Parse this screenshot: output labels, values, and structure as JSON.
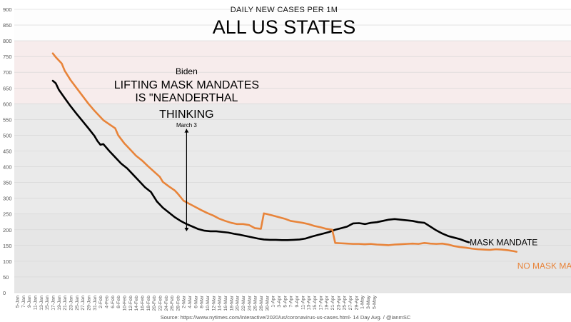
{
  "chart_data": {
    "type": "line",
    "subtitle": "DAILY NEW CASES PER 1M",
    "title": "ALL US STATES",
    "source": "Source: https://www.nytimes.com/interactive/2020/us/coronavirus-us-cases.html- 14 Day Avg. / @ianmSC",
    "ylim": [
      0,
      900
    ],
    "y_ticks": [
      0,
      50,
      100,
      150,
      200,
      250,
      300,
      350,
      400,
      450,
      500,
      550,
      600,
      650,
      700,
      750,
      800,
      850,
      900
    ],
    "x_ticks": [
      "5-Jan",
      "7-Jan",
      "9-Jan",
      "11-Jan",
      "13-Jan",
      "15-Jan",
      "17-Jan",
      "19-Jan",
      "21-Jan",
      "23-Jan",
      "25-Jan",
      "27-Jan",
      "29-Jan",
      "31-Jan",
      "2-Feb",
      "4-Feb",
      "6-Feb",
      "8-Feb",
      "10-Feb",
      "12-Feb",
      "14-Feb",
      "16-Feb",
      "18-Feb",
      "20-Feb",
      "22-Feb",
      "24-Feb",
      "26-Feb",
      "28-Feb",
      "2-Mar",
      "4-Mar",
      "6-Mar",
      "8-Mar",
      "10-Mar",
      "12-Mar",
      "14-Mar",
      "16-Mar",
      "18-Mar",
      "20-Mar",
      "22-Mar",
      "24-Mar",
      "26-Mar",
      "28-Mar",
      "30-Mar",
      "1-Apr",
      "3-Apr",
      "5-Apr",
      "7-Apr",
      "9-Apr",
      "11-Apr",
      "13-Apr",
      "15-Apr",
      "17-Apr",
      "19-Apr",
      "21-Apr",
      "23-Apr",
      "25-Apr",
      "27-Apr",
      "29-Apr",
      "1-May",
      "3-May",
      "5-May"
    ],
    "x_axis_start": "5-Jan",
    "bands": [
      {
        "from": 0,
        "to": 250,
        "color": "#e6e6e6"
      },
      {
        "from": 250,
        "to": 600,
        "color": "#eaeaea"
      },
      {
        "from": 600,
        "to": 800,
        "color": "#f7ecec"
      },
      {
        "from": 800,
        "to": 900,
        "color": "#fdfdfd"
      }
    ],
    "series": [
      {
        "name": "MASK MANDATE",
        "color": "#000000",
        "points": [
          [
            "17-Jan",
            673
          ],
          [
            "18-Jan",
            665
          ],
          [
            "19-Jan",
            645
          ],
          [
            "21-Jan",
            618
          ],
          [
            "23-Jan",
            592
          ],
          [
            "25-Jan",
            568
          ],
          [
            "27-Jan",
            545
          ],
          [
            "29-Jan",
            522
          ],
          [
            "31-Jan",
            498
          ],
          [
            "1-Feb",
            482
          ],
          [
            "2-Feb",
            470
          ],
          [
            "3-Feb",
            472
          ],
          [
            "5-Feb",
            450
          ],
          [
            "7-Feb",
            430
          ],
          [
            "9-Feb",
            410
          ],
          [
            "11-Feb",
            395
          ],
          [
            "13-Feb",
            375
          ],
          [
            "15-Feb",
            355
          ],
          [
            "17-Feb",
            335
          ],
          [
            "19-Feb",
            320
          ],
          [
            "21-Feb",
            290
          ],
          [
            "23-Feb",
            270
          ],
          [
            "25-Feb",
            255
          ],
          [
            "27-Feb",
            240
          ],
          [
            "1-Mar",
            228
          ],
          [
            "3-Mar",
            218
          ],
          [
            "5-Mar",
            210
          ],
          [
            "7-Mar",
            202
          ],
          [
            "9-Mar",
            197
          ],
          [
            "11-Mar",
            195
          ],
          [
            "13-Mar",
            195
          ],
          [
            "15-Mar",
            193
          ],
          [
            "17-Mar",
            191
          ],
          [
            "19-Mar",
            187
          ],
          [
            "21-Mar",
            184
          ],
          [
            "23-Mar",
            180
          ],
          [
            "25-Mar",
            176
          ],
          [
            "27-Mar",
            172
          ],
          [
            "29-Mar",
            169
          ],
          [
            "31-Mar",
            168
          ],
          [
            "2-Apr",
            168
          ],
          [
            "4-Apr",
            167
          ],
          [
            "6-Apr",
            167
          ],
          [
            "8-Apr",
            168
          ],
          [
            "10-Apr",
            169
          ],
          [
            "12-Apr",
            172
          ],
          [
            "14-Apr",
            178
          ],
          [
            "16-Apr",
            183
          ],
          [
            "18-Apr",
            188
          ],
          [
            "20-Apr",
            193
          ],
          [
            "22-Apr",
            200
          ],
          [
            "24-Apr",
            205
          ],
          [
            "26-Apr",
            210
          ],
          [
            "28-Apr",
            220
          ],
          [
            "30-Apr",
            221
          ],
          [
            "2-May",
            218
          ],
          [
            "4-May",
            222
          ],
          [
            "6-May",
            224
          ],
          [
            "8-May",
            228
          ],
          [
            "10-May",
            232
          ],
          [
            "12-May",
            234
          ],
          [
            "14-May",
            232
          ],
          [
            "16-May",
            230
          ],
          [
            "18-May",
            228
          ],
          [
            "20-May",
            224
          ],
          [
            "22-May",
            222
          ],
          [
            "24-May",
            210
          ],
          [
            "26-May",
            198
          ],
          [
            "28-May",
            188
          ],
          [
            "30-May",
            180
          ],
          [
            "1-Jun",
            175
          ],
          [
            "3-Jun",
            170
          ],
          [
            "5-Jun",
            163
          ],
          [
            "6-Jun",
            160
          ]
        ]
      },
      {
        "name": "NO MASK MANDATE",
        "color": "#e8843a",
        "points": [
          [
            "17-Jan",
            760
          ],
          [
            "18-Jan",
            748
          ],
          [
            "19-Jan",
            738
          ],
          [
            "20-Jan",
            728
          ],
          [
            "21-Jan",
            705
          ],
          [
            "23-Jan",
            675
          ],
          [
            "25-Jan",
            650
          ],
          [
            "27-Jan",
            625
          ],
          [
            "29-Jan",
            600
          ],
          [
            "31-Jan",
            578
          ],
          [
            "2-Feb",
            558
          ],
          [
            "3-Feb",
            548
          ],
          [
            "5-Feb",
            535
          ],
          [
            "7-Feb",
            522
          ],
          [
            "8-Feb",
            500
          ],
          [
            "10-Feb",
            475
          ],
          [
            "12-Feb",
            455
          ],
          [
            "14-Feb",
            435
          ],
          [
            "16-Feb",
            420
          ],
          [
            "18-Feb",
            402
          ],
          [
            "20-Feb",
            385
          ],
          [
            "22-Feb",
            368
          ],
          [
            "23-Feb",
            352
          ],
          [
            "25-Feb",
            338
          ],
          [
            "27-Feb",
            325
          ],
          [
            "28-Feb",
            315
          ],
          [
            "2-Mar",
            292
          ],
          [
            "4-Mar",
            282
          ],
          [
            "6-Mar",
            272
          ],
          [
            "8-Mar",
            262
          ],
          [
            "10-Mar",
            253
          ],
          [
            "12-Mar",
            245
          ],
          [
            "14-Mar",
            235
          ],
          [
            "16-Mar",
            228
          ],
          [
            "18-Mar",
            222
          ],
          [
            "20-Mar",
            218
          ],
          [
            "22-Mar",
            218
          ],
          [
            "24-Mar",
            215
          ],
          [
            "26-Mar",
            205
          ],
          [
            "28-Mar",
            203
          ],
          [
            "29-Mar",
            252
          ],
          [
            "30-Mar",
            250
          ],
          [
            "1-Apr",
            245
          ],
          [
            "3-Apr",
            240
          ],
          [
            "5-Apr",
            235
          ],
          [
            "7-Apr",
            228
          ],
          [
            "9-Apr",
            225
          ],
          [
            "11-Apr",
            222
          ],
          [
            "13-Apr",
            218
          ],
          [
            "15-Apr",
            212
          ],
          [
            "17-Apr",
            208
          ],
          [
            "19-Apr",
            203
          ],
          [
            "21-Apr",
            200
          ],
          [
            "22-Apr",
            158
          ],
          [
            "24-Apr",
            157
          ],
          [
            "26-Apr",
            156
          ],
          [
            "28-Apr",
            155
          ],
          [
            "30-Apr",
            155
          ],
          [
            "2-May",
            154
          ],
          [
            "4-May",
            155
          ],
          [
            "6-May",
            153
          ],
          [
            "8-May",
            152
          ],
          [
            "10-May",
            151
          ],
          [
            "12-May",
            153
          ],
          [
            "14-May",
            154
          ],
          [
            "16-May",
            155
          ],
          [
            "18-May",
            156
          ],
          [
            "20-May",
            155
          ],
          [
            "22-May",
            158
          ],
          [
            "24-May",
            156
          ],
          [
            "26-May",
            155
          ],
          [
            "28-May",
            156
          ],
          [
            "30-May",
            153
          ],
          [
            "1-Jun",
            148
          ],
          [
            "3-Jun",
            145
          ],
          [
            "5-Jun",
            143
          ],
          [
            "7-Jun",
            140
          ],
          [
            "9-Jun",
            138
          ],
          [
            "11-Jun",
            137
          ],
          [
            "13-Jun",
            136
          ],
          [
            "15-Jun",
            138
          ],
          [
            "17-Jun",
            137
          ],
          [
            "19-Jun",
            135
          ],
          [
            "21-Jun",
            132
          ],
          [
            "22-Jun",
            130
          ]
        ]
      }
    ],
    "annotation": {
      "lines": [
        "Biden",
        "LIFTING MASK MANDATES",
        "IS \"NEANDERTHAL",
        "THINKING"
      ],
      "date_label": "March 3",
      "arrow_x": "3-Mar",
      "arrow_from": 520,
      "arrow_to": 195
    }
  }
}
